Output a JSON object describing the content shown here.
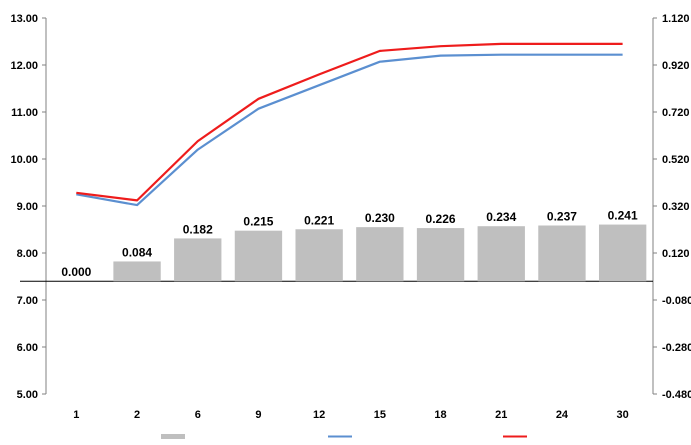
{
  "chart_data": {
    "type": "bar",
    "title": "",
    "xlabel": "",
    "ylabel": "",
    "categories": [
      "1",
      "2",
      "6",
      "9",
      "12",
      "15",
      "18",
      "21",
      "24",
      "30"
    ],
    "y_left": {
      "ylim": [
        5.0,
        13.0
      ],
      "ticks": [
        "5.00",
        "6.00",
        "7.00",
        "8.00",
        "9.00",
        "10.00",
        "11.00",
        "12.00",
        "13.00"
      ]
    },
    "y_right": {
      "ylim": [
        -0.48,
        1.12
      ],
      "ticks": [
        "-0.480",
        "-0.280",
        "-0.080",
        "0.120",
        "0.320",
        "0.520",
        "0.720",
        "0.920",
        "1.120"
      ]
    },
    "series": [
      {
        "kind": "bar",
        "axis": "right",
        "color": "#bfbfbf",
        "values": [
          0.0,
          0.084,
          0.182,
          0.215,
          0.221,
          0.23,
          0.226,
          0.234,
          0.237,
          0.241
        ],
        "labels": [
          "0.000",
          "0.084",
          "0.182",
          "0.215",
          "0.221",
          "0.230",
          "0.226",
          "0.234",
          "0.237",
          "0.241"
        ]
      },
      {
        "kind": "line",
        "axis": "left",
        "color": "#5b8fd0",
        "values": [
          9.25,
          9.02,
          10.2,
          11.07,
          11.57,
          12.07,
          12.2,
          12.22,
          12.22,
          12.22
        ]
      },
      {
        "kind": "line",
        "axis": "left",
        "color": "#ee1c1c",
        "values": [
          9.28,
          9.12,
          10.38,
          11.28,
          11.8,
          12.3,
          12.4,
          12.45,
          12.45,
          12.45
        ]
      }
    ],
    "legend_placement": "bottom",
    "grid": false
  }
}
